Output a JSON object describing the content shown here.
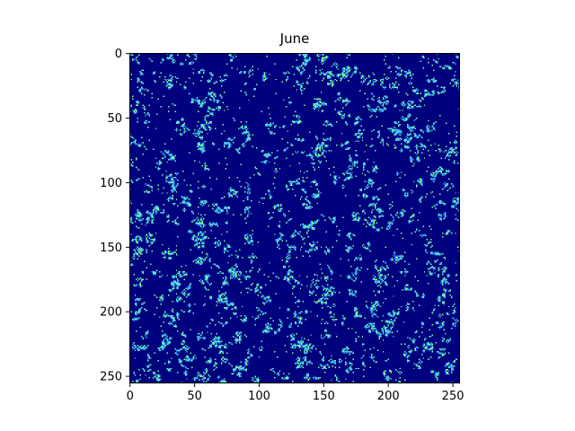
{
  "chart_data": {
    "type": "heatmap",
    "title": "June",
    "xlabel": "",
    "ylabel": "",
    "grid_size": 256,
    "xlim": [
      0,
      256
    ],
    "ylim": [
      256,
      0
    ],
    "x_ticks": [
      0,
      50,
      100,
      150,
      200,
      250
    ],
    "y_ticks": [
      0,
      50,
      100,
      150,
      200,
      250
    ],
    "x_tick_labels": [
      "0",
      "50",
      "100",
      "150",
      "200",
      "250"
    ],
    "y_tick_labels": [
      "0",
      "50",
      "100",
      "150",
      "200",
      "250"
    ],
    "colormap": "jet",
    "value_range": [
      0,
      1
    ],
    "background_value": 0,
    "colors": {
      "background": "#00007f",
      "edge_cells": "#1e90ff",
      "live_cells": "#7dffa0"
    },
    "description_values": {
      "live_cell_fraction": 0.06,
      "edge_cell_fraction": 0.07
    }
  }
}
